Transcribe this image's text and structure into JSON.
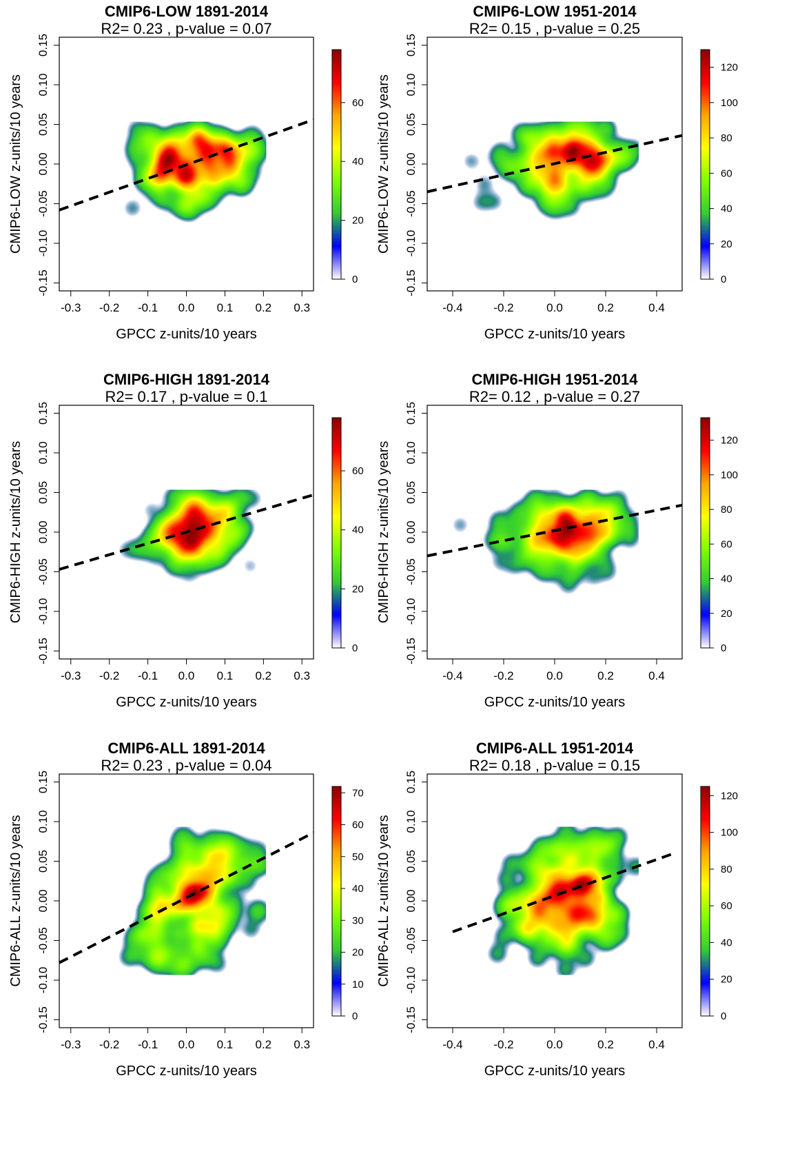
{
  "figure": {
    "colorscale": [
      "#ffffff",
      "#0000ff",
      "#32cd32",
      "#7fff00",
      "#ffff00",
      "#ffa500",
      "#ff0000",
      "#8b0000"
    ],
    "regression_line_color": "#000000"
  },
  "chart_data": [
    {
      "type": "heatmap",
      "title": "CMIP6-LOW 1891-2014",
      "subtitle": "R2= 0.23 , p-value = 0.07",
      "xlabel": "GPCC z-units/10 years",
      "ylabel": "CMIP6-LOW z-units/10 years",
      "xlim": [
        -0.33,
        0.33
      ],
      "ylim": [
        -0.16,
        0.16
      ],
      "xticks": [
        "-0.3",
        "-0.2",
        "-0.1",
        "0.0",
        "0.1",
        "0.2",
        "0.3"
      ],
      "xtick_values": [
        -0.3,
        -0.2,
        -0.1,
        0.0,
        0.1,
        0.2,
        0.3
      ],
      "yticks": [
        "-0.15",
        "-0.10",
        "-0.05",
        "0.00",
        "0.05",
        "0.10",
        "0.15"
      ],
      "ytick_values": [
        -0.15,
        -0.1,
        -0.05,
        0.0,
        0.05,
        0.1,
        0.15
      ],
      "colorbar": {
        "ticks": [
          "0",
          "20",
          "40",
          "60"
        ],
        "tick_values": [
          0,
          20,
          40,
          60
        ],
        "max": 78
      },
      "density": {
        "x_range": [
          -0.22,
          0.2
        ],
        "y_range": [
          -0.07,
          0.05
        ],
        "center": [
          0.02,
          0.0
        ],
        "spread": [
          0.075,
          0.025
        ],
        "tilt": 0.3
      },
      "regression": {
        "x": [
          -0.33,
          0.33
        ],
        "y": [
          -0.058,
          0.056
        ]
      }
    },
    {
      "type": "heatmap",
      "title": "CMIP6-LOW 1951-2014",
      "subtitle": "R2= 0.15 , p-value = 0.25",
      "xlabel": "GPCC z-units/10 years",
      "ylabel": "CMIP6-LOW z-units/10 years",
      "xlim": [
        -0.5,
        0.5
      ],
      "ylim": [
        -0.16,
        0.16
      ],
      "xticks": [
        "-0.4",
        "-0.2",
        "0.0",
        "0.2",
        "0.4"
      ],
      "xtick_values": [
        -0.4,
        -0.2,
        0.0,
        0.2,
        0.4
      ],
      "yticks": [
        "-0.15",
        "-0.10",
        "-0.05",
        "0.00",
        "0.05",
        "0.10",
        "0.15"
      ],
      "ytick_values": [
        -0.15,
        -0.1,
        -0.05,
        0.0,
        0.05,
        0.1,
        0.15
      ],
      "colorbar": {
        "ticks": [
          "0",
          "20",
          "40",
          "60",
          "80",
          "100",
          "120"
        ],
        "tick_values": [
          0,
          20,
          40,
          60,
          80,
          100,
          120
        ],
        "max": 130
      },
      "density": {
        "x_range": [
          -0.4,
          0.32
        ],
        "y_range": [
          -0.07,
          0.05
        ],
        "center": [
          0.05,
          0.005
        ],
        "spread": [
          0.13,
          0.025
        ],
        "tilt": 0.2
      },
      "regression": {
        "x": [
          -0.5,
          0.5
        ],
        "y": [
          -0.035,
          0.036
        ]
      }
    },
    {
      "type": "heatmap",
      "title": "CMIP6-HIGH 1891-2014",
      "subtitle": "R2= 0.17 , p-value = 0.1",
      "xlabel": "GPCC z-units/10 years",
      "ylabel": "CMIP6-HIGH z-units/10 years",
      "xlim": [
        -0.33,
        0.33
      ],
      "ylim": [
        -0.16,
        0.16
      ],
      "xticks": [
        "-0.3",
        "-0.2",
        "-0.1",
        "0.0",
        "0.1",
        "0.2",
        "0.3"
      ],
      "xtick_values": [
        -0.3,
        -0.2,
        -0.1,
        0.0,
        0.1,
        0.2,
        0.3
      ],
      "yticks": [
        "-0.15",
        "-0.10",
        "-0.05",
        "0.00",
        "0.05",
        "0.10",
        "0.15"
      ],
      "ytick_values": [
        -0.15,
        -0.1,
        -0.05,
        0.0,
        0.05,
        0.1,
        0.15
      ],
      "colorbar": {
        "ticks": [
          "0",
          "20",
          "40",
          "60"
        ],
        "tick_values": [
          0,
          20,
          40,
          60
        ],
        "max": 78
      },
      "density": {
        "x_range": [
          -0.22,
          0.2
        ],
        "y_range": [
          -0.075,
          0.05
        ],
        "center": [
          0.02,
          0.005
        ],
        "spread": [
          0.07,
          0.025
        ],
        "tilt": 0.3
      },
      "regression": {
        "x": [
          -0.33,
          0.33
        ],
        "y": [
          -0.047,
          0.047
        ]
      }
    },
    {
      "type": "heatmap",
      "title": "CMIP6-HIGH 1951-2014",
      "subtitle": "R2= 0.12 , p-value = 0.27",
      "xlabel": "GPCC z-units/10 years",
      "ylabel": "CMIP6-HIGH z-units/10 years",
      "xlim": [
        -0.5,
        0.5
      ],
      "ylim": [
        -0.16,
        0.16
      ],
      "xticks": [
        "-0.4",
        "-0.2",
        "0.0",
        "0.2",
        "0.4"
      ],
      "xtick_values": [
        -0.4,
        -0.2,
        0.0,
        0.2,
        0.4
      ],
      "yticks": [
        "-0.15",
        "-0.10",
        "-0.05",
        "0.00",
        "0.05",
        "0.10",
        "0.15"
      ],
      "ytick_values": [
        -0.15,
        -0.1,
        -0.05,
        0.0,
        0.05,
        0.1,
        0.15
      ],
      "colorbar": {
        "ticks": [
          "0",
          "20",
          "40",
          "60",
          "80",
          "100",
          "120"
        ],
        "tick_values": [
          0,
          20,
          40,
          60,
          80,
          100,
          120
        ],
        "max": 133
      },
      "density": {
        "x_range": [
          -0.4,
          0.32
        ],
        "y_range": [
          -0.075,
          0.05
        ],
        "center": [
          0.05,
          0.005
        ],
        "spread": [
          0.13,
          0.025
        ],
        "tilt": 0.2
      },
      "regression": {
        "x": [
          -0.5,
          0.5
        ],
        "y": [
          -0.03,
          0.034
        ]
      }
    },
    {
      "type": "heatmap",
      "title": "CMIP6-ALL 1891-2014",
      "subtitle": "R2= 0.23 , p-value = 0.04",
      "xlabel": "GPCC z-units/10 years",
      "ylabel": "CMIP6-ALL z-units/10 years",
      "xlim": [
        -0.33,
        0.33
      ],
      "ylim": [
        -0.16,
        0.16
      ],
      "xticks": [
        "-0.3",
        "-0.2",
        "-0.1",
        "0.0",
        "0.1",
        "0.2",
        "0.3"
      ],
      "xtick_values": [
        -0.3,
        -0.2,
        -0.1,
        0.0,
        0.1,
        0.2,
        0.3
      ],
      "yticks": [
        "-0.15",
        "-0.10",
        "-0.05",
        "0.00",
        "0.05",
        "0.10",
        "0.15"
      ],
      "ytick_values": [
        -0.15,
        -0.1,
        -0.05,
        0.0,
        0.05,
        0.1,
        0.15
      ],
      "colorbar": {
        "ticks": [
          "0",
          "10",
          "20",
          "30",
          "40",
          "50",
          "60",
          "70"
        ],
        "tick_values": [
          0,
          10,
          20,
          30,
          40,
          50,
          60,
          70
        ],
        "max": 72
      },
      "density": {
        "x_range": [
          -0.21,
          0.2
        ],
        "y_range": [
          -0.09,
          0.09
        ],
        "center": [
          0.02,
          0.0
        ],
        "spread": [
          0.07,
          0.045
        ],
        "tilt": 0.5
      },
      "regression": {
        "x": [
          -0.33,
          0.33
        ],
        "y": [
          -0.078,
          0.086
        ]
      }
    },
    {
      "type": "heatmap",
      "title": "CMIP6-ALL 1951-2014",
      "subtitle": "R2= 0.18 , p-value = 0.15",
      "xlabel": "GPCC z-units/10 years",
      "ylabel": "CMIP6-ALL z-units/10 years",
      "xlim": [
        -0.5,
        0.5
      ],
      "ylim": [
        -0.16,
        0.16
      ],
      "xticks": [
        "-0.4",
        "-0.2",
        "0.0",
        "0.2",
        "0.4"
      ],
      "xtick_values": [
        -0.4,
        -0.2,
        0.0,
        0.2,
        0.4
      ],
      "yticks": [
        "-0.15",
        "-0.10",
        "-0.05",
        "0.00",
        "0.05",
        "0.10",
        "0.15"
      ],
      "ytick_values": [
        -0.15,
        -0.1,
        -0.05,
        0.0,
        0.05,
        0.1,
        0.15
      ],
      "colorbar": {
        "ticks": [
          "0",
          "20",
          "40",
          "60",
          "80",
          "100",
          "120"
        ],
        "tick_values": [
          0,
          20,
          40,
          60,
          80,
          100,
          120
        ],
        "max": 125
      },
      "density": {
        "x_range": [
          -0.4,
          0.32
        ],
        "y_range": [
          -0.09,
          0.09
        ],
        "center": [
          0.04,
          0.005
        ],
        "spread": [
          0.13,
          0.04
        ],
        "tilt": 0.3
      },
      "regression": {
        "x": [
          -0.4,
          0.46
        ],
        "y": [
          -0.039,
          0.059
        ]
      }
    }
  ]
}
